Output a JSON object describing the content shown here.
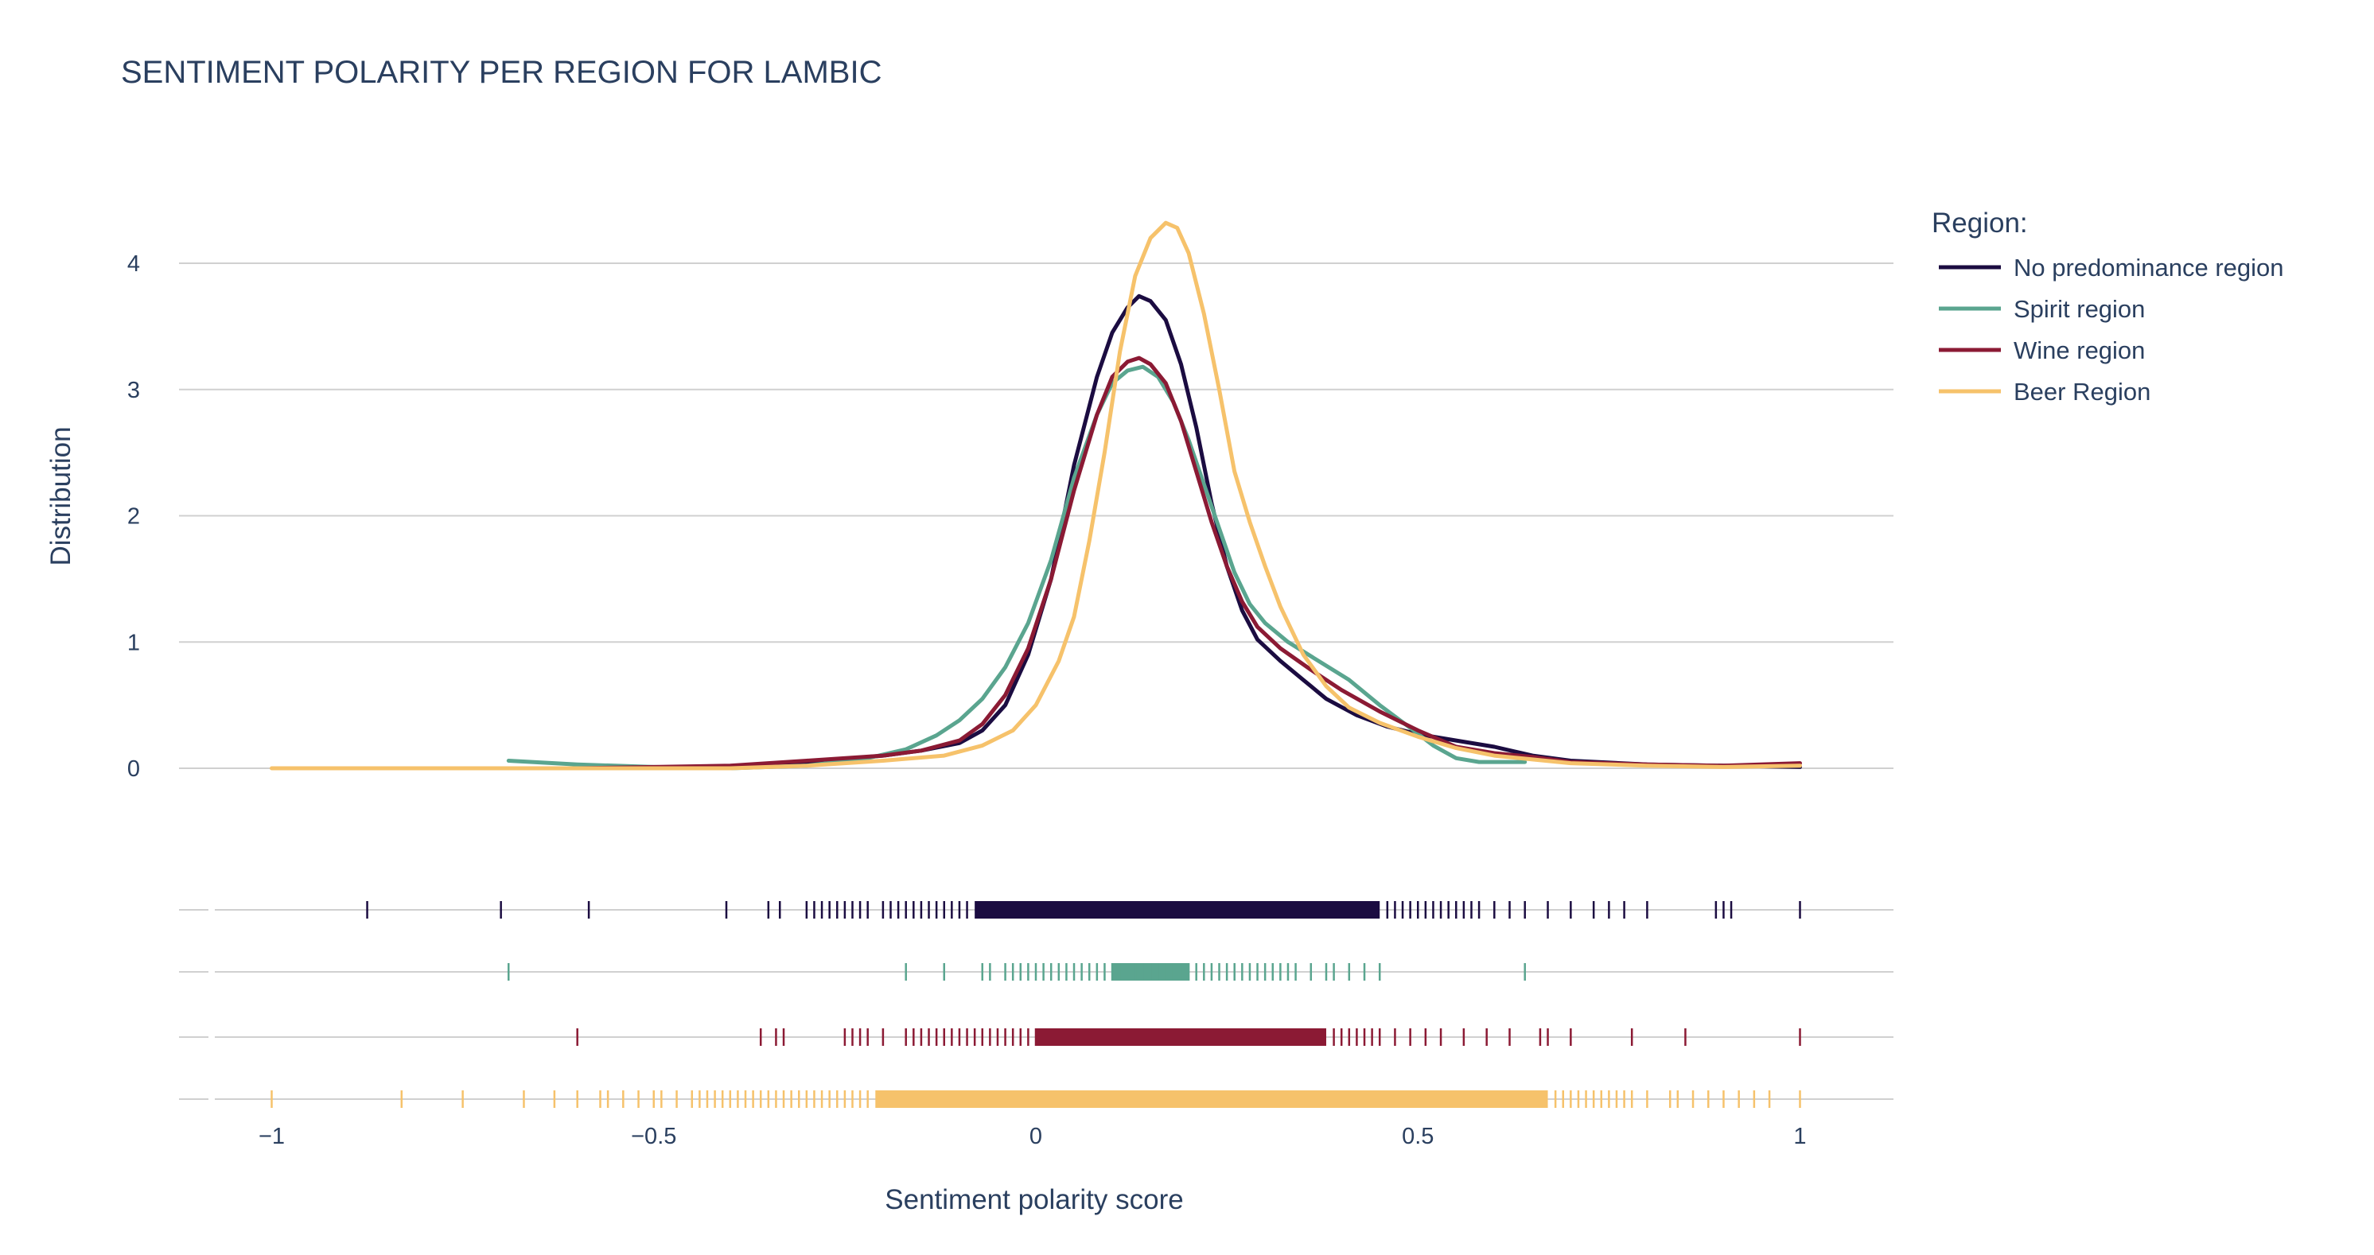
{
  "chart_data": {
    "type": "line",
    "title": "SENTIMENT POLARITY PER REGION FOR LAMBIC",
    "xlabel": "Sentiment polarity score",
    "ylabel": "Distribution",
    "xlim": [
      -1.1,
      1.12
    ],
    "ylim": [
      -0.35,
      4.6
    ],
    "x_ticks": [
      {
        "value": -1,
        "label": "−1"
      },
      {
        "value": -0.5,
        "label": "−0.5"
      },
      {
        "value": 0,
        "label": "0"
      },
      {
        "value": 0.5,
        "label": "0.5"
      },
      {
        "value": 1,
        "label": "1"
      }
    ],
    "y_ticks": [
      {
        "value": 0,
        "label": "0"
      },
      {
        "value": 1,
        "label": "1"
      },
      {
        "value": 2,
        "label": "2"
      },
      {
        "value": 3,
        "label": "3"
      },
      {
        "value": 4,
        "label": "4"
      }
    ],
    "grid": true,
    "legend": {
      "title": "Region:",
      "placement": "top-right"
    },
    "series": [
      {
        "name": "No predominance region",
        "color": "#1b0c41",
        "points": [
          [
            -0.875,
            0
          ],
          [
            -0.7,
            0
          ],
          [
            -0.5,
            0
          ],
          [
            -0.4,
            0.01
          ],
          [
            -0.3,
            0.05
          ],
          [
            -0.2,
            0.1
          ],
          [
            -0.15,
            0.14
          ],
          [
            -0.1,
            0.2
          ],
          [
            -0.07,
            0.3
          ],
          [
            -0.04,
            0.5
          ],
          [
            -0.01,
            0.9
          ],
          [
            0.02,
            1.5
          ],
          [
            0.05,
            2.4
          ],
          [
            0.08,
            3.1
          ],
          [
            0.1,
            3.45
          ],
          [
            0.12,
            3.65
          ],
          [
            0.135,
            3.74
          ],
          [
            0.15,
            3.7
          ],
          [
            0.17,
            3.55
          ],
          [
            0.19,
            3.2
          ],
          [
            0.21,
            2.7
          ],
          [
            0.23,
            2.1
          ],
          [
            0.25,
            1.6
          ],
          [
            0.27,
            1.25
          ],
          [
            0.29,
            1.02
          ],
          [
            0.32,
            0.85
          ],
          [
            0.35,
            0.7
          ],
          [
            0.38,
            0.55
          ],
          [
            0.42,
            0.42
          ],
          [
            0.46,
            0.33
          ],
          [
            0.5,
            0.27
          ],
          [
            0.55,
            0.22
          ],
          [
            0.6,
            0.17
          ],
          [
            0.65,
            0.1
          ],
          [
            0.7,
            0.06
          ],
          [
            0.8,
            0.03
          ],
          [
            0.9,
            0.02
          ],
          [
            1.0,
            0.01
          ]
        ]
      },
      {
        "name": "Spirit region",
        "color": "#5aa58f",
        "points": [
          [
            -0.69,
            0.06
          ],
          [
            -0.6,
            0.03
          ],
          [
            -0.5,
            0.01
          ],
          [
            -0.4,
            0.0
          ],
          [
            -0.3,
            0.02
          ],
          [
            -0.22,
            0.08
          ],
          [
            -0.17,
            0.15
          ],
          [
            -0.13,
            0.26
          ],
          [
            -0.1,
            0.38
          ],
          [
            -0.07,
            0.55
          ],
          [
            -0.04,
            0.8
          ],
          [
            -0.01,
            1.15
          ],
          [
            0.02,
            1.65
          ],
          [
            0.05,
            2.3
          ],
          [
            0.08,
            2.8
          ],
          [
            0.1,
            3.05
          ],
          [
            0.12,
            3.15
          ],
          [
            0.14,
            3.18
          ],
          [
            0.16,
            3.1
          ],
          [
            0.18,
            2.9
          ],
          [
            0.2,
            2.6
          ],
          [
            0.22,
            2.25
          ],
          [
            0.24,
            1.9
          ],
          [
            0.26,
            1.55
          ],
          [
            0.28,
            1.3
          ],
          [
            0.3,
            1.15
          ],
          [
            0.33,
            1.0
          ],
          [
            0.37,
            0.85
          ],
          [
            0.41,
            0.7
          ],
          [
            0.45,
            0.5
          ],
          [
            0.49,
            0.32
          ],
          [
            0.52,
            0.18
          ],
          [
            0.55,
            0.08
          ],
          [
            0.58,
            0.05
          ],
          [
            0.64,
            0.05
          ]
        ]
      },
      {
        "name": "Wine region",
        "color": "#8b1a34",
        "points": [
          [
            -0.6,
            0.0
          ],
          [
            -0.5,
            0.01
          ],
          [
            -0.4,
            0.02
          ],
          [
            -0.3,
            0.06
          ],
          [
            -0.2,
            0.1
          ],
          [
            -0.15,
            0.14
          ],
          [
            -0.1,
            0.22
          ],
          [
            -0.07,
            0.35
          ],
          [
            -0.04,
            0.58
          ],
          [
            -0.01,
            0.95
          ],
          [
            0.02,
            1.5
          ],
          [
            0.05,
            2.2
          ],
          [
            0.08,
            2.8
          ],
          [
            0.1,
            3.1
          ],
          [
            0.12,
            3.22
          ],
          [
            0.135,
            3.25
          ],
          [
            0.15,
            3.2
          ],
          [
            0.17,
            3.05
          ],
          [
            0.19,
            2.75
          ],
          [
            0.21,
            2.35
          ],
          [
            0.23,
            1.95
          ],
          [
            0.25,
            1.6
          ],
          [
            0.27,
            1.32
          ],
          [
            0.29,
            1.12
          ],
          [
            0.32,
            0.95
          ],
          [
            0.36,
            0.78
          ],
          [
            0.4,
            0.62
          ],
          [
            0.45,
            0.45
          ],
          [
            0.5,
            0.3
          ],
          [
            0.55,
            0.17
          ],
          [
            0.6,
            0.12
          ],
          [
            0.65,
            0.09
          ],
          [
            0.7,
            0.05
          ],
          [
            0.8,
            0.03
          ],
          [
            0.9,
            0.02
          ],
          [
            1.0,
            0.04
          ]
        ]
      },
      {
        "name": "Beer Region",
        "color": "#f6c26b",
        "points": [
          [
            -1.0,
            0.0
          ],
          [
            -0.8,
            0.0
          ],
          [
            -0.6,
            0.0
          ],
          [
            -0.4,
            0.0
          ],
          [
            -0.3,
            0.02
          ],
          [
            -0.2,
            0.06
          ],
          [
            -0.12,
            0.1
          ],
          [
            -0.07,
            0.18
          ],
          [
            -0.03,
            0.3
          ],
          [
            0.0,
            0.5
          ],
          [
            0.03,
            0.85
          ],
          [
            0.05,
            1.2
          ],
          [
            0.07,
            1.8
          ],
          [
            0.09,
            2.5
          ],
          [
            0.11,
            3.3
          ],
          [
            0.13,
            3.9
          ],
          [
            0.15,
            4.2
          ],
          [
            0.17,
            4.32
          ],
          [
            0.185,
            4.28
          ],
          [
            0.2,
            4.08
          ],
          [
            0.22,
            3.6
          ],
          [
            0.24,
            3.0
          ],
          [
            0.26,
            2.35
          ],
          [
            0.28,
            1.95
          ],
          [
            0.3,
            1.6
          ],
          [
            0.32,
            1.28
          ],
          [
            0.35,
            0.9
          ],
          [
            0.38,
            0.65
          ],
          [
            0.41,
            0.48
          ],
          [
            0.45,
            0.36
          ],
          [
            0.5,
            0.25
          ],
          [
            0.55,
            0.16
          ],
          [
            0.6,
            0.1
          ],
          [
            0.65,
            0.07
          ],
          [
            0.7,
            0.04
          ],
          [
            0.8,
            0.02
          ],
          [
            0.9,
            0.01
          ],
          [
            1.0,
            0.02
          ]
        ]
      }
    ],
    "rug": [
      {
        "name": "No predominance region",
        "color": "#1b0c41",
        "sparse": [
          -0.875,
          -0.7,
          -0.585,
          -0.405,
          -0.35,
          -0.335,
          -0.3,
          -0.29,
          -0.28,
          -0.27,
          -0.26,
          -0.25,
          -0.24,
          -0.23,
          -0.22,
          -0.2,
          -0.19,
          -0.18,
          -0.17,
          -0.16,
          -0.15,
          -0.14,
          -0.13,
          -0.12,
          -0.11,
          -0.1,
          -0.09,
          0.46,
          0.47,
          0.48,
          0.49,
          0.5,
          0.51,
          0.52,
          0.53,
          0.54,
          0.55,
          0.56,
          0.57,
          0.58,
          0.6,
          0.62,
          0.64,
          0.67,
          0.7,
          0.73,
          0.75,
          0.77,
          0.8,
          0.89,
          0.9,
          0.91,
          1.0
        ],
        "dense_range": [
          -0.08,
          0.45
        ]
      },
      {
        "name": "Spirit region",
        "color": "#5aa58f",
        "sparse": [
          -0.69,
          -0.17,
          -0.12,
          -0.07,
          -0.06,
          -0.04,
          -0.03,
          -0.02,
          -0.01,
          0.0,
          0.01,
          0.02,
          0.03,
          0.04,
          0.05,
          0.06,
          0.07,
          0.08,
          0.09,
          0.1,
          0.11,
          0.12,
          0.13,
          0.14,
          0.15,
          0.16,
          0.17,
          0.18,
          0.19,
          0.2,
          0.21,
          0.22,
          0.23,
          0.24,
          0.25,
          0.26,
          0.27,
          0.28,
          0.29,
          0.3,
          0.31,
          0.32,
          0.33,
          0.34,
          0.36,
          0.38,
          0.39,
          0.41,
          0.43,
          0.45,
          0.64
        ],
        "dense_range": [
          0.1,
          0.2
        ]
      },
      {
        "name": "Wine region",
        "color": "#8b1a34",
        "sparse": [
          -0.6,
          -0.36,
          -0.34,
          -0.33,
          -0.25,
          -0.24,
          -0.23,
          -0.22,
          -0.2,
          -0.17,
          -0.16,
          -0.15,
          -0.14,
          -0.13,
          -0.12,
          -0.11,
          -0.1,
          -0.09,
          -0.08,
          -0.07,
          -0.06,
          -0.05,
          -0.04,
          -0.03,
          -0.02,
          -0.01,
          0.0,
          0.39,
          0.4,
          0.41,
          0.42,
          0.43,
          0.44,
          0.45,
          0.47,
          0.49,
          0.51,
          0.53,
          0.56,
          0.59,
          0.62,
          0.66,
          0.67,
          0.7,
          0.78,
          0.85,
          1.0
        ],
        "dense_range": [
          0.0,
          0.38
        ]
      },
      {
        "name": "Beer Region",
        "color": "#f6c26b",
        "sparse": [
          -1.0,
          -0.83,
          -0.75,
          -0.67,
          -0.63,
          -0.6,
          -0.57,
          -0.56,
          -0.54,
          -0.52,
          -0.5,
          -0.49,
          -0.47,
          -0.45,
          -0.44,
          -0.43,
          -0.42,
          -0.41,
          -0.4,
          -0.39,
          -0.38,
          -0.37,
          -0.36,
          -0.35,
          -0.34,
          -0.33,
          -0.32,
          -0.31,
          -0.3,
          -0.29,
          -0.28,
          -0.27,
          -0.26,
          -0.25,
          -0.24,
          -0.23,
          -0.22,
          0.68,
          0.69,
          0.7,
          0.71,
          0.72,
          0.73,
          0.74,
          0.75,
          0.76,
          0.77,
          0.78,
          0.8,
          0.83,
          0.84,
          0.86,
          0.88,
          0.9,
          0.92,
          0.94,
          0.96,
          1.0
        ],
        "dense_range": [
          -0.21,
          0.67
        ]
      }
    ]
  }
}
